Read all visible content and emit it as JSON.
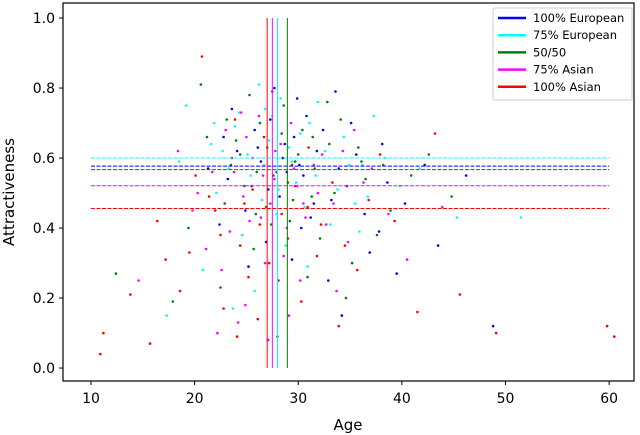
{
  "chart_data": {
    "type": "scatter",
    "title": "",
    "xlabel": "Age",
    "ylabel": "Attractiveness",
    "xlim": [
      7.3,
      62.4
    ],
    "ylim": [
      -0.037,
      1.043
    ],
    "xticks": [
      10,
      20,
      30,
      40,
      50,
      60
    ],
    "xtick_labels": [
      "10",
      "20",
      "30",
      "40",
      "50",
      "60"
    ],
    "yticks": [
      0.0,
      0.2,
      0.4,
      0.6,
      0.8,
      1.0
    ],
    "ytick_labels": [
      "0.0",
      "0.2",
      "0.4",
      "0.6",
      "0.8",
      "1.0"
    ],
    "grid": false,
    "legend_position": "top-right",
    "series": [
      {
        "name": "100% European",
        "color": "#0000ff",
        "mean_attractiveness": 0.577,
        "mean_age": 28.0,
        "points": [
          [
            24.1,
            0.62
          ],
          [
            27.3,
            0.71
          ],
          [
            30.5,
            0.55
          ],
          [
            33.2,
            0.48
          ],
          [
            22.8,
            0.66
          ],
          [
            26.4,
            0.59
          ],
          [
            29.9,
            0.77
          ],
          [
            35.6,
            0.61
          ],
          [
            31.2,
            0.43
          ],
          [
            25.5,
            0.52
          ],
          [
            28.7,
            0.64
          ],
          [
            37.8,
            0.39
          ],
          [
            23.6,
            0.74
          ],
          [
            32.4,
            0.68
          ],
          [
            39.5,
            0.27
          ],
          [
            26.9,
            0.36
          ],
          [
            30.1,
            0.58
          ],
          [
            34.7,
            0.52
          ],
          [
            21.3,
            0.57
          ],
          [
            28.2,
            0.49
          ],
          [
            36.4,
            0.44
          ],
          [
            43.5,
            0.35
          ],
          [
            27.7,
            0.8
          ],
          [
            31.8,
            0.62
          ],
          [
            24.9,
            0.45
          ],
          [
            29.4,
            0.31
          ],
          [
            33.9,
            0.57
          ],
          [
            38.6,
            0.53
          ],
          [
            25.8,
            0.68
          ],
          [
            30.8,
            0.72
          ],
          [
            46.2,
            0.55
          ],
          [
            22.4,
            0.41
          ],
          [
            35.1,
            0.7
          ],
          [
            28.9,
            0.56
          ],
          [
            32.9,
            0.25
          ],
          [
            26.1,
            0.63
          ],
          [
            40.3,
            0.47
          ],
          [
            29.6,
            0.66
          ],
          [
            23.2,
            0.54
          ],
          [
            36.9,
            0.33
          ],
          [
            48.8,
            0.12
          ],
          [
            34.2,
            0.15
          ],
          [
            27.1,
            0.51
          ],
          [
            31.5,
            0.47
          ],
          [
            42.2,
            0.58
          ],
          [
            25.2,
            0.29
          ],
          [
            30.3,
            0.4
          ],
          [
            38.1,
            0.64
          ],
          [
            33.6,
            0.79
          ],
          [
            28.5,
            0.6
          ]
        ]
      },
      {
        "name": "75% European",
        "color": "#00ffff",
        "mean_attractiveness": 0.6,
        "mean_age": 28.0,
        "points": [
          [
            19.2,
            0.75
          ],
          [
            23.9,
            0.69
          ],
          [
            26.7,
            0.58
          ],
          [
            29.1,
            0.63
          ],
          [
            31.7,
            0.55
          ],
          [
            34.4,
            0.66
          ],
          [
            22.1,
            0.5
          ],
          [
            27.5,
            0.72
          ],
          [
            30.6,
            0.46
          ],
          [
            25.1,
            0.61
          ],
          [
            36.2,
            0.58
          ],
          [
            28.3,
            0.77
          ],
          [
            21.6,
            0.64
          ],
          [
            33.1,
            0.41
          ],
          [
            24.6,
            0.38
          ],
          [
            39.8,
            0.52
          ],
          [
            26.2,
            0.81
          ],
          [
            31.1,
            0.7
          ],
          [
            18.5,
            0.59
          ],
          [
            29.8,
            0.53
          ],
          [
            35.5,
            0.47
          ],
          [
            23.3,
            0.57
          ],
          [
            27.9,
            0.44
          ],
          [
            32.6,
            0.62
          ],
          [
            41.7,
            0.57
          ],
          [
            20.8,
            0.28
          ],
          [
            25.8,
            0.22
          ],
          [
            30.2,
            0.67
          ],
          [
            37.3,
            0.72
          ],
          [
            28.8,
            0.35
          ],
          [
            24.3,
            0.73
          ],
          [
            33.8,
            0.51
          ],
          [
            45.3,
            0.43
          ],
          [
            22.7,
            0.62
          ],
          [
            26.5,
            0.48
          ],
          [
            29.4,
            0.59
          ],
          [
            35.9,
            0.39
          ],
          [
            31.9,
            0.76
          ],
          [
            27.2,
            0.65
          ],
          [
            51.5,
            0.43
          ],
          [
            17.3,
            0.15
          ],
          [
            23.7,
            0.17
          ],
          [
            38.4,
            0.6
          ],
          [
            30.9,
            0.29
          ],
          [
            25.4,
            0.55
          ],
          [
            34.9,
            0.58
          ],
          [
            28.1,
            0.51
          ],
          [
            21.9,
            0.7
          ],
          [
            36.7,
            0.49
          ],
          [
            26.8,
            0.74
          ]
        ]
      },
      {
        "name": "50/50",
        "color": "#008000",
        "mean_attractiveness": 0.567,
        "mean_age": 28.95,
        "points": [
          [
            20.6,
            0.81
          ],
          [
            24.4,
            0.61
          ],
          [
            27.6,
            0.55
          ],
          [
            30.4,
            0.68
          ],
          [
            33.5,
            0.5
          ],
          [
            22.9,
            0.47
          ],
          [
            26.3,
            0.7
          ],
          [
            29.2,
            0.42
          ],
          [
            35.8,
            0.63
          ],
          [
            31.6,
            0.57
          ],
          [
            25.7,
            0.34
          ],
          [
            28.6,
            0.75
          ],
          [
            38.9,
            0.45
          ],
          [
            23.5,
            0.58
          ],
          [
            32.1,
            0.37
          ],
          [
            27.0,
            0.63
          ],
          [
            36.5,
            0.54
          ],
          [
            21.2,
            0.66
          ],
          [
            29.7,
            0.59
          ],
          [
            34.1,
            0.71
          ],
          [
            24.8,
            0.52
          ],
          [
            30.9,
            0.26
          ],
          [
            42.6,
            0.61
          ],
          [
            26.9,
            0.46
          ],
          [
            33.0,
            0.64
          ],
          [
            19.4,
            0.4
          ],
          [
            28.4,
            0.67
          ],
          [
            37.6,
            0.38
          ],
          [
            25.3,
            0.78
          ],
          [
            31.3,
            0.49
          ],
          [
            40.9,
            0.55
          ],
          [
            22.5,
            0.23
          ],
          [
            29.0,
            0.53
          ],
          [
            35.2,
            0.3
          ],
          [
            27.4,
            0.41
          ],
          [
            32.8,
            0.76
          ],
          [
            24.0,
            0.65
          ],
          [
            44.8,
            0.49
          ],
          [
            30.0,
            0.61
          ],
          [
            26.0,
            0.56
          ],
          [
            12.4,
            0.27
          ],
          [
            17.9,
            0.19
          ],
          [
            34.6,
            0.2
          ],
          [
            28.0,
            0.09
          ],
          [
            38.2,
            0.58
          ],
          [
            23.1,
            0.71
          ],
          [
            31.4,
            0.66
          ],
          [
            25.9,
            0.44
          ],
          [
            29.5,
            0.48
          ],
          [
            36.1,
            0.59
          ]
        ]
      },
      {
        "name": "75% Asian",
        "color": "#ff00ff",
        "mean_attractiveness": 0.521,
        "mean_age": 27.5,
        "points": [
          [
            21.7,
            0.56
          ],
          [
            24.7,
            0.49
          ],
          [
            27.8,
            0.62
          ],
          [
            30.7,
            0.43
          ],
          [
            23.4,
            0.39
          ],
          [
            26.6,
            0.55
          ],
          [
            29.3,
            0.7
          ],
          [
            33.4,
            0.47
          ],
          [
            25.0,
            0.66
          ],
          [
            28.6,
            0.32
          ],
          [
            31.5,
            0.58
          ],
          [
            19.8,
            0.45
          ],
          [
            36.3,
            0.53
          ],
          [
            22.6,
            0.28
          ],
          [
            27.3,
            0.47
          ],
          [
            34.8,
            0.36
          ],
          [
            24.2,
            0.13
          ],
          [
            29.9,
            0.52
          ],
          [
            26.2,
            0.72
          ],
          [
            32.3,
            0.61
          ],
          [
            18.4,
            0.62
          ],
          [
            28.9,
            0.4
          ],
          [
            38.7,
            0.44
          ],
          [
            23.8,
            0.56
          ],
          [
            30.2,
            0.25
          ],
          [
            25.6,
            0.6
          ],
          [
            27.1,
            0.08
          ],
          [
            35.4,
            0.68
          ],
          [
            21.1,
            0.34
          ],
          [
            31.9,
            0.5
          ],
          [
            40.5,
            0.31
          ],
          [
            26.4,
            0.43
          ],
          [
            29.6,
            0.57
          ],
          [
            23.0,
            0.68
          ],
          [
            33.7,
            0.22
          ],
          [
            24.9,
            0.18
          ],
          [
            28.3,
            0.64
          ],
          [
            14.6,
            0.25
          ],
          [
            22.2,
            0.1
          ],
          [
            37.1,
            0.57
          ],
          [
            30.5,
            0.47
          ],
          [
            25.3,
            0.42
          ],
          [
            27.7,
            0.54
          ],
          [
            32.7,
            0.41
          ],
          [
            20.3,
            0.5
          ],
          [
            29.1,
            0.15
          ],
          [
            34.3,
            0.62
          ],
          [
            26.8,
            0.3
          ],
          [
            43.9,
            0.46
          ],
          [
            24.5,
            0.73
          ]
        ]
      },
      {
        "name": "100% Asian",
        "color": "#ff0000",
        "mean_attractiveness": 0.456,
        "mean_age": 27.0,
        "points": [
          [
            20.1,
            0.55
          ],
          [
            22.5,
            0.38
          ],
          [
            24.8,
            0.47
          ],
          [
            27.2,
            0.3
          ],
          [
            29.7,
            0.52
          ],
          [
            32.2,
            0.41
          ],
          [
            18.6,
            0.22
          ],
          [
            23.6,
            0.6
          ],
          [
            26.1,
            0.14
          ],
          [
            28.4,
            0.44
          ],
          [
            31.0,
            0.63
          ],
          [
            34.5,
            0.35
          ],
          [
            21.4,
            0.49
          ],
          [
            25.2,
            0.26
          ],
          [
            27.9,
            0.56
          ],
          [
            30.3,
            0.19
          ],
          [
            36.8,
            0.48
          ],
          [
            19.5,
            0.33
          ],
          [
            24.1,
            0.09
          ],
          [
            26.7,
            0.66
          ],
          [
            29.0,
            0.37
          ],
          [
            33.3,
            0.53
          ],
          [
            11.2,
            0.1
          ],
          [
            13.8,
            0.21
          ],
          [
            15.7,
            0.07
          ],
          [
            17.2,
            0.31
          ],
          [
            22.0,
            0.45
          ],
          [
            25.6,
            0.51
          ],
          [
            28.1,
            0.25
          ],
          [
            30.9,
            0.46
          ],
          [
            35.7,
            0.28
          ],
          [
            39.3,
            0.42
          ],
          [
            41.5,
            0.16
          ],
          [
            45.6,
            0.21
          ],
          [
            49.1,
            0.1
          ],
          [
            59.8,
            0.12
          ],
          [
            60.5,
            0.09
          ],
          [
            10.9,
            0.04
          ],
          [
            16.4,
            0.42
          ],
          [
            20.7,
            0.89
          ],
          [
            23.9,
            0.71
          ],
          [
            27.5,
            0.79
          ],
          [
            31.8,
            0.32
          ],
          [
            37.9,
            0.61
          ],
          [
            43.2,
            0.67
          ],
          [
            26.3,
            0.41
          ],
          [
            29.4,
            0.58
          ],
          [
            22.8,
            0.17
          ],
          [
            24.4,
            0.35
          ],
          [
            33.9,
            0.12
          ]
        ]
      }
    ],
    "hline_xrange": [
      10,
      60
    ],
    "vline_yrange": [
      0,
      1
    ]
  }
}
